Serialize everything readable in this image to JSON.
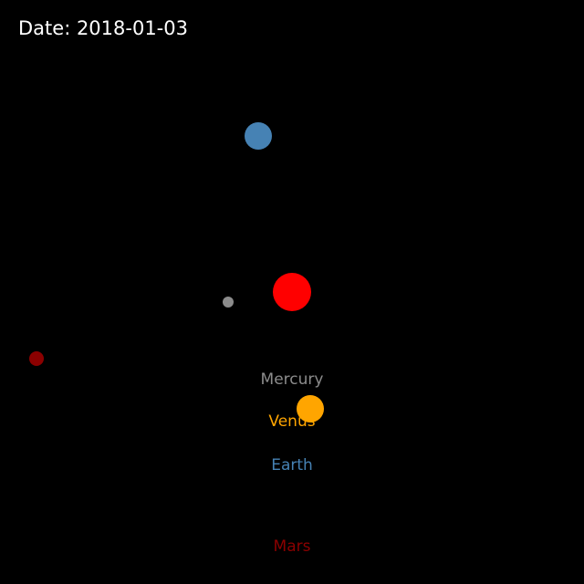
{
  "date_label": "Date: 2018-01-03",
  "colors": {
    "background": "#000000",
    "date_text": "#ffffff",
    "sun": "#ff0000",
    "mercury": "#8c8c8c",
    "venus": "#ffa500",
    "earth": "#4682b4",
    "mars": "#8b0000"
  },
  "bodies": [
    {
      "name": "Sun"
    },
    {
      "name": "Mercury"
    },
    {
      "name": "Venus"
    },
    {
      "name": "Earth"
    },
    {
      "name": "Mars"
    }
  ]
}
